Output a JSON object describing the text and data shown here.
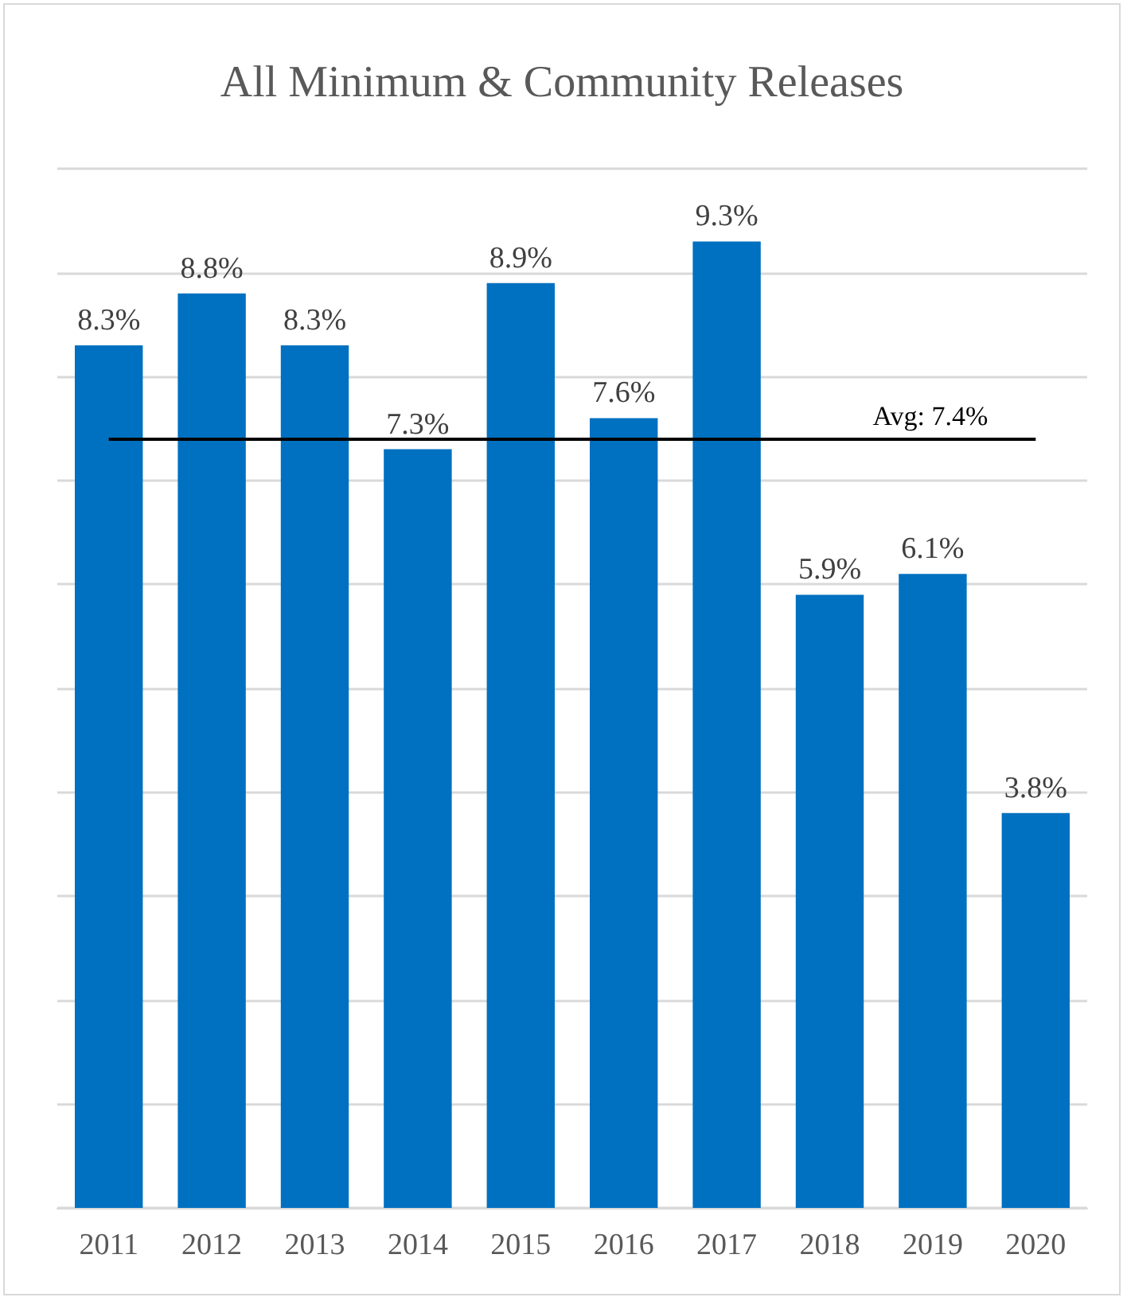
{
  "chart_data": {
    "type": "bar",
    "title": "All Minimum & Community Releases",
    "categories": [
      "2011",
      "2012",
      "2013",
      "2014",
      "2015",
      "2016",
      "2017",
      "2018",
      "2019",
      "2020"
    ],
    "values": [
      8.3,
      8.8,
      8.3,
      7.3,
      8.9,
      7.6,
      9.3,
      5.9,
      6.1,
      3.8
    ],
    "value_labels": [
      "8.3%",
      "8.8%",
      "8.3%",
      "7.3%",
      "8.9%",
      "7.6%",
      "9.3%",
      "5.9%",
      "6.1%",
      "3.8%"
    ],
    "color": "#0070c0",
    "ylim": [
      0,
      10
    ],
    "yticks": [
      {
        "value": 0,
        "label": null
      },
      {
        "value": 1,
        "label": null
      },
      {
        "value": 2,
        "label": null
      },
      {
        "value": 3,
        "label": null
      },
      {
        "value": 4,
        "label": null
      },
      {
        "value": 5,
        "label": null
      },
      {
        "value": 6,
        "label": null
      },
      {
        "value": 7,
        "label": null
      },
      {
        "value": 8,
        "label": null
      },
      {
        "value": 9,
        "label": null
      },
      {
        "value": 10,
        "label": null
      }
    ],
    "tick_labels": "x",
    "grid": "y",
    "ref_lines": [
      {
        "axis": "y",
        "value": 7.4,
        "label": "Avg: 7.4%",
        "color": "#000000"
      }
    ]
  }
}
